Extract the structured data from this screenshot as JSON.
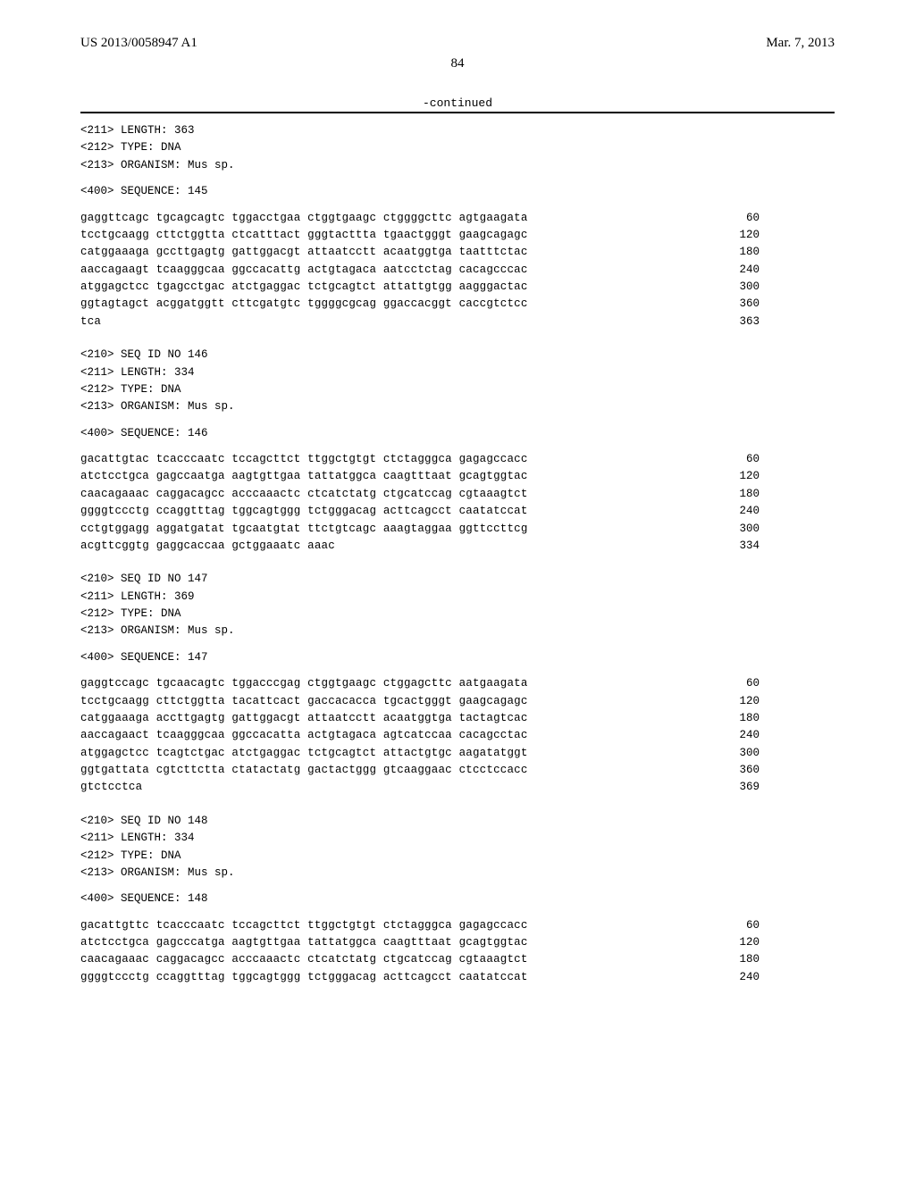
{
  "header": {
    "left": "US 2013/0058947 A1",
    "right": "Mar. 7, 2013"
  },
  "page_number": "84",
  "continued_label": "-continued",
  "sequences": [
    {
      "meta": [
        "<211> LENGTH: 363",
        "<212> TYPE: DNA",
        "<213> ORGANISM: Mus sp."
      ],
      "title": "<400> SEQUENCE: 145",
      "lines": [
        {
          "text": "gaggttcagc tgcagcagtc tggacctgaa ctggtgaagc ctggggcttc agtgaagata",
          "num": "60"
        },
        {
          "text": "tcctgcaagg cttctggtta ctcatttact gggtacttta tgaactgggt gaagcagagc",
          "num": "120"
        },
        {
          "text": "catggaaaga gccttgagtg gattggacgt attaatcctt acaatggtga taatttctac",
          "num": "180"
        },
        {
          "text": "aaccagaagt tcaagggcaa ggccacattg actgtagaca aatcctctag cacagcccac",
          "num": "240"
        },
        {
          "text": "atggagctcc tgagcctgac atctgaggac tctgcagtct attattgtgg aagggactac",
          "num": "300"
        },
        {
          "text": "ggtagtagct acggatggtt cttcgatgtc tggggcgcag ggaccacggt caccgtctcc",
          "num": "360"
        },
        {
          "text": "tca",
          "num": "363"
        }
      ]
    },
    {
      "meta": [
        "<210> SEQ ID NO 146",
        "<211> LENGTH: 334",
        "<212> TYPE: DNA",
        "<213> ORGANISM: Mus sp."
      ],
      "title": "<400> SEQUENCE: 146",
      "lines": [
        {
          "text": "gacattgtac tcacccaatc tccagcttct ttggctgtgt ctctagggca gagagccacc",
          "num": "60"
        },
        {
          "text": "atctcctgca gagccaatga aagtgttgaa tattatggca caagtttaat gcagtggtac",
          "num": "120"
        },
        {
          "text": "caacagaaac caggacagcc acccaaactc ctcatctatg ctgcatccag cgtaaagtct",
          "num": "180"
        },
        {
          "text": "ggggtccctg ccaggtttag tggcagtggg tctgggacag acttcagcct caatatccat",
          "num": "240"
        },
        {
          "text": "cctgtggagg aggatgatat tgcaatgtat ttctgtcagc aaagtaggaa ggttccttcg",
          "num": "300"
        },
        {
          "text": "acgttcggtg gaggcaccaa gctggaaatc aaac",
          "num": "334"
        }
      ]
    },
    {
      "meta": [
        "<210> SEQ ID NO 147",
        "<211> LENGTH: 369",
        "<212> TYPE: DNA",
        "<213> ORGANISM: Mus sp."
      ],
      "title": "<400> SEQUENCE: 147",
      "lines": [
        {
          "text": "gaggtccagc tgcaacagtc tggacccgag ctggtgaagc ctggagcttc aatgaagata",
          "num": "60"
        },
        {
          "text": "tcctgcaagg cttctggtta tacattcact gaccacacca tgcactgggt gaagcagagc",
          "num": "120"
        },
        {
          "text": "catggaaaga accttgagtg gattggacgt attaatcctt acaatggtga tactagtcac",
          "num": "180"
        },
        {
          "text": "aaccagaact tcaagggcaa ggccacatta actgtagaca agtcatccaa cacagcctac",
          "num": "240"
        },
        {
          "text": "atggagctcc tcagtctgac atctgaggac tctgcagtct attactgtgc aagatatggt",
          "num": "300"
        },
        {
          "text": "ggtgattata cgtcttctta ctatactatg gactactggg gtcaaggaac ctcctccacc",
          "num": "360"
        },
        {
          "text": "gtctcctca",
          "num": "369"
        }
      ]
    },
    {
      "meta": [
        "<210> SEQ ID NO 148",
        "<211> LENGTH: 334",
        "<212> TYPE: DNA",
        "<213> ORGANISM: Mus sp."
      ],
      "title": "<400> SEQUENCE: 148",
      "lines": [
        {
          "text": "gacattgttc tcacccaatc tccagcttct ttggctgtgt ctctagggca gagagccacc",
          "num": "60"
        },
        {
          "text": "atctcctgca gagcccatga aagtgttgaa tattatggca caagtttaat gcagtggtac",
          "num": "120"
        },
        {
          "text": "caacagaaac caggacagcc acccaaactc ctcatctatg ctgcatccag cgtaaagtct",
          "num": "180"
        },
        {
          "text": "ggggtccctg ccaggtttag tggcagtggg tctgggacag acttcagcct caatatccat",
          "num": "240"
        }
      ]
    }
  ]
}
